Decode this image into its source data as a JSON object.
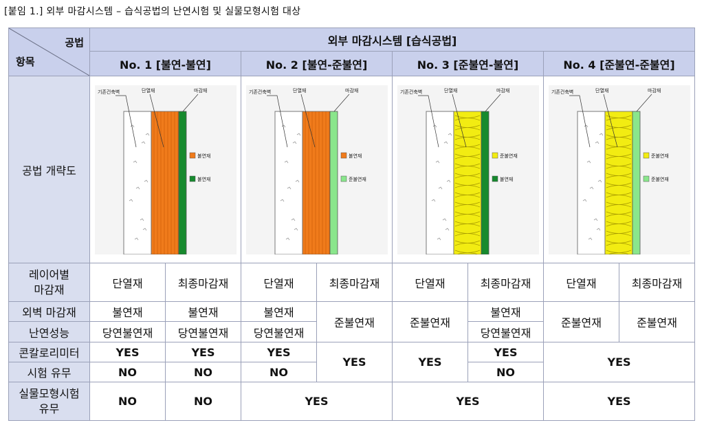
{
  "caption": "[붙임 1.] 외부 마감시스템 – 습식공법의 난연시험 및 실물모형시험 대상",
  "header": {
    "corner_top": "공법",
    "corner_bottom": "항목",
    "group_title": "외부 마감시스템 [습식공법]",
    "columns": [
      "No. 1 [불연-불연]",
      "No. 2 [불연-준불연]",
      "No. 3 [준불연-불연]",
      "No. 4 [준불연-준불연]"
    ]
  },
  "rows": {
    "diagram_label": "공법 개략도",
    "layer_label": "레이어별\n마감재",
    "layer_sub": [
      "단열재",
      "최종마감재",
      "단열재",
      "최종마감재",
      "단열재",
      "최종마감재",
      "단열재",
      "최종마감재"
    ],
    "fire_label_1": "외벽 마감재",
    "fire_label_2": "난연성능",
    "calorimeter_label_1": "콘칼로리미터",
    "calorimeter_label_2": "시험 유무",
    "mockup_label_1": "실물모형시험",
    "mockup_label_2": "유무"
  },
  "values": {
    "noncombustible": "불연재",
    "equiv_noncombustible": "당연불연재",
    "quasi_noncombustible": "준불연재",
    "yes": "YES",
    "no": "NO"
  },
  "diagram": {
    "wall_label": "기존건축벽",
    "insulation_label": "단열재",
    "finish_label": "마감재",
    "legend_noncombustible": "불연재",
    "legend_quasi": "준불연재",
    "colors": {
      "orange": "#f07b1b",
      "dark_green": "#178a2e",
      "light_green": "#8ae68c",
      "yellow": "#f2ec12"
    },
    "panels": [
      {
        "insulation": "orange",
        "finish": "dark_green",
        "legend1": "불연재",
        "legend2": "불연재"
      },
      {
        "insulation": "orange",
        "finish": "light_green",
        "legend1": "불연재",
        "legend2": "준불연재"
      },
      {
        "insulation": "yellow",
        "finish": "dark_green",
        "legend1": "준불연재",
        "legend2": "불연재"
      },
      {
        "insulation": "yellow",
        "finish": "light_green",
        "legend1": "준불연재",
        "legend2": "준불연재"
      }
    ]
  }
}
